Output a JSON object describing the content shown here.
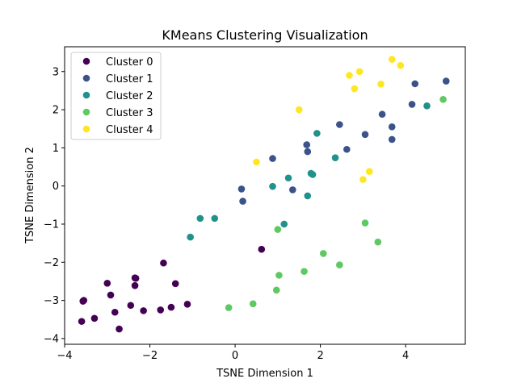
{
  "chart_data": {
    "type": "scatter",
    "title": "KMeans Clustering Visualization",
    "xlabel": "TSNE Dimension 1",
    "ylabel": "TSNE Dimension 2",
    "xlim": [
      -4.0,
      5.4
    ],
    "ylim": [
      -4.15,
      3.65
    ],
    "xticks": [
      -4,
      -2,
      0,
      2,
      4
    ],
    "xtick_labels": [
      "−4",
      "−2",
      "0",
      "2",
      "4"
    ],
    "yticks": [
      -4,
      -3,
      -2,
      -1,
      0,
      1,
      2,
      3
    ],
    "ytick_labels": [
      "−4",
      "−3",
      "−2",
      "−1",
      "0",
      "1",
      "2",
      "3"
    ],
    "grid": false,
    "legend_position": "top-left",
    "series": [
      {
        "name": "Cluster 0",
        "color": "#440154",
        "points": [
          [
            -3.55,
            -3.0
          ],
          [
            -3.57,
            -3.02
          ],
          [
            -3.6,
            -3.55
          ],
          [
            -3.3,
            -3.47
          ],
          [
            -3.0,
            -2.55
          ],
          [
            -2.92,
            -2.86
          ],
          [
            -2.82,
            -3.31
          ],
          [
            -2.72,
            -3.75
          ],
          [
            -2.45,
            -3.13
          ],
          [
            -2.35,
            -2.41
          ],
          [
            -2.33,
            -2.42
          ],
          [
            -2.35,
            -2.61
          ],
          [
            -2.15,
            -3.27
          ],
          [
            -1.75,
            -3.25
          ],
          [
            -1.68,
            -2.02
          ],
          [
            -1.5,
            -3.18
          ],
          [
            -1.4,
            -2.56
          ],
          [
            -1.12,
            -3.1
          ],
          [
            0.62,
            -1.66
          ]
        ]
      },
      {
        "name": "Cluster 1",
        "color": "#3b528b",
        "points": [
          [
            0.15,
            -0.08
          ],
          [
            0.18,
            -0.4
          ],
          [
            0.88,
            0.72
          ],
          [
            1.35,
            -0.1
          ],
          [
            1.68,
            1.08
          ],
          [
            1.7,
            0.9
          ],
          [
            2.45,
            1.61
          ],
          [
            2.62,
            0.96
          ],
          [
            3.05,
            1.35
          ],
          [
            3.45,
            1.88
          ],
          [
            3.68,
            1.55
          ],
          [
            3.68,
            1.22
          ],
          [
            4.15,
            2.14
          ],
          [
            4.22,
            2.68
          ],
          [
            4.95,
            2.75
          ]
        ]
      },
      {
        "name": "Cluster 2",
        "color": "#21918c",
        "points": [
          [
            -1.05,
            -1.34
          ],
          [
            -0.82,
            -0.85
          ],
          [
            -0.48,
            -0.85
          ],
          [
            0.88,
            -0.01
          ],
          [
            1.15,
            -1.0
          ],
          [
            1.25,
            0.21
          ],
          [
            1.7,
            -0.26
          ],
          [
            1.78,
            0.33
          ],
          [
            1.82,
            0.3
          ],
          [
            1.92,
            1.38
          ],
          [
            2.35,
            0.74
          ],
          [
            4.5,
            2.1
          ]
        ]
      },
      {
        "name": "Cluster 3",
        "color": "#5ec962",
        "points": [
          [
            -0.15,
            -3.19
          ],
          [
            0.42,
            -3.09
          ],
          [
            0.97,
            -2.73
          ],
          [
            1.0,
            -1.14
          ],
          [
            1.03,
            -2.34
          ],
          [
            1.62,
            -2.24
          ],
          [
            2.07,
            -1.77
          ],
          [
            2.45,
            -2.07
          ],
          [
            3.05,
            -0.97
          ],
          [
            3.35,
            -1.47
          ],
          [
            4.88,
            2.27
          ]
        ]
      },
      {
        "name": "Cluster 4",
        "color": "#fde725",
        "points": [
          [
            0.5,
            0.63
          ],
          [
            1.5,
            2.0
          ],
          [
            2.68,
            2.9
          ],
          [
            2.8,
            2.55
          ],
          [
            2.92,
            3.0
          ],
          [
            3.0,
            0.17
          ],
          [
            3.15,
            0.38
          ],
          [
            3.42,
            2.67
          ],
          [
            3.68,
            3.32
          ],
          [
            3.88,
            3.16
          ]
        ]
      }
    ]
  }
}
